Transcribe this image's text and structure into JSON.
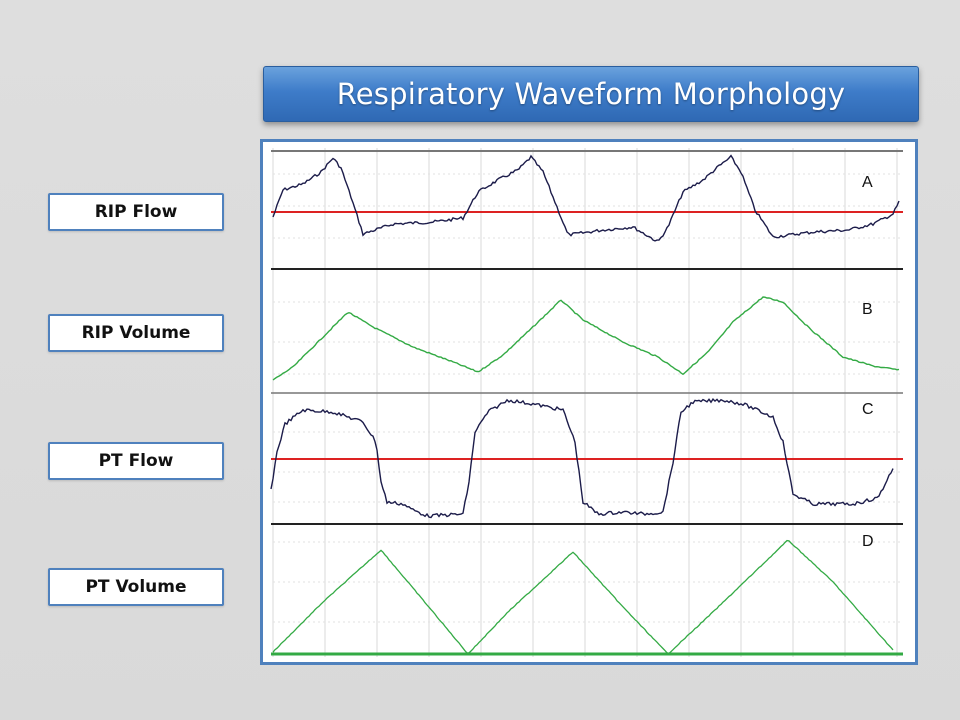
{
  "title": "Respiratory Waveform Morphology",
  "labels": {
    "rip_flow": "RIP Flow",
    "rip_volume": "RIP Volume",
    "pt_flow": "PT Flow",
    "pt_volume": "PT Volume"
  },
  "panels": {
    "a": "A",
    "b": "B",
    "c": "C",
    "d": "D"
  },
  "colors": {
    "banner": "#3e7cc9",
    "frame": "#4f81bd",
    "flow_trace": "#1c1c4a",
    "volume_trace": "#33aa44",
    "baseline": "#dd2222"
  }
}
